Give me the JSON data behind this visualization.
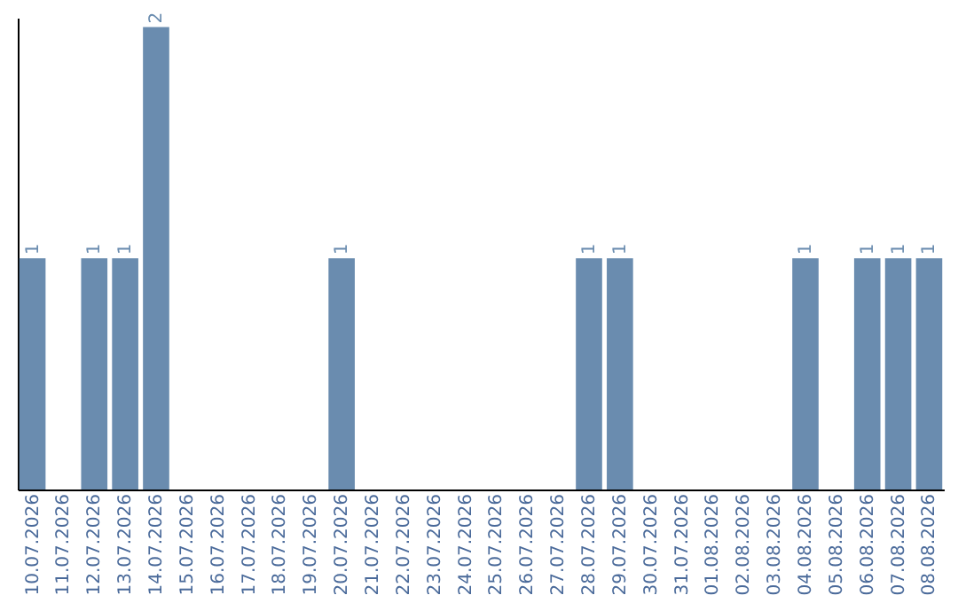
{
  "chart_data": {
    "type": "bar",
    "categories": [
      "10.07.2026",
      "11.07.2026",
      "12.07.2026",
      "13.07.2026",
      "14.07.2026",
      "15.07.2026",
      "16.07.2026",
      "17.07.2026",
      "18.07.2026",
      "19.07.2026",
      "20.07.2026",
      "21.07.2026",
      "22.07.2026",
      "23.07.2026",
      "24.07.2026",
      "25.07.2026",
      "26.07.2026",
      "27.07.2026",
      "28.07.2026",
      "29.07.2026",
      "30.07.2026",
      "31.07.2026",
      "01.08.2026",
      "02.08.2026",
      "03.08.2026",
      "04.08.2026",
      "05.08.2026",
      "06.08.2026",
      "07.08.2026",
      "08.08.2026"
    ],
    "values": [
      1,
      0,
      1,
      1,
      2,
      0,
      0,
      0,
      0,
      0,
      1,
      0,
      0,
      0,
      0,
      0,
      0,
      0,
      1,
      1,
      0,
      0,
      0,
      0,
      0,
      1,
      0,
      1,
      1,
      1
    ],
    "value_labels": [
      "1",
      null,
      "1",
      "1",
      "2",
      null,
      null,
      null,
      null,
      null,
      "1",
      null,
      null,
      null,
      null,
      null,
      null,
      null,
      "1",
      "1",
      null,
      null,
      null,
      null,
      null,
      "1",
      null,
      "1",
      "1",
      "1"
    ],
    "color": "#6a8caf",
    "ylim": [
      0,
      2.04
    ],
    "tick_labels": "x"
  }
}
